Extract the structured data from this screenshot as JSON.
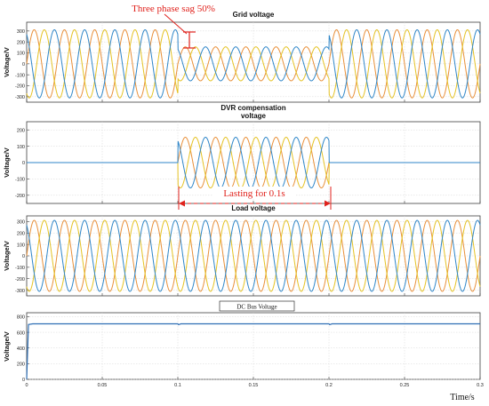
{
  "colors": {
    "phase_a": "#e8903a",
    "phase_b": "#e5c224",
    "phase_c": "#2f86c8",
    "annotation_red": "#e0221c",
    "dc_bus": "#2f6fb5",
    "grid_line": "#d6d6d6",
    "axis": "#404040"
  },
  "annotations": {
    "sag_label": "Three phase sag 50%",
    "lasting_label": "Lasting for 0.1s"
  },
  "x_axis": {
    "label": "Time/s",
    "ticks": [
      "0",
      "0.05",
      "0.1",
      "0.15",
      "0.2",
      "0.25",
      "0.3"
    ]
  },
  "chart_data": [
    {
      "type": "line",
      "title": "Grid voltage",
      "ylabel": "Voltage/V",
      "xlim": [
        0,
        0.3
      ],
      "ylim": [
        -350,
        380
      ],
      "yticks": [
        -300,
        -200,
        -100,
        0,
        100,
        200,
        300
      ],
      "grid": true,
      "signal": "three_phase_sine",
      "frequency_hz": 50,
      "segments": [
        {
          "t_start": 0,
          "t_end": 0.1,
          "amplitude": 311
        },
        {
          "t_start": 0.1,
          "t_end": 0.2,
          "amplitude": 155
        },
        {
          "t_start": 0.2,
          "t_end": 0.3,
          "amplitude": 311
        }
      ],
      "series": [
        {
          "phase_deg": 0
        },
        {
          "phase_deg": -120
        },
        {
          "phase_deg": 120
        }
      ]
    },
    {
      "type": "line",
      "title": "DVR compensation\nvoltage",
      "ylabel": "Voltage/V",
      "xlim": [
        0,
        0.3
      ],
      "ylim": [
        -250,
        250
      ],
      "yticks": [
        -200,
        -100,
        0,
        100,
        200
      ],
      "grid": true,
      "signal": "three_phase_sine",
      "frequency_hz": 50,
      "segments": [
        {
          "t_start": 0,
          "t_end": 0.1,
          "amplitude": 0
        },
        {
          "t_start": 0.1,
          "t_end": 0.2,
          "amplitude": 155
        },
        {
          "t_start": 0.2,
          "t_end": 0.3,
          "amplitude": 0
        }
      ],
      "series": [
        {
          "phase_deg": 0
        },
        {
          "phase_deg": -120
        },
        {
          "phase_deg": 120
        }
      ]
    },
    {
      "type": "line",
      "title": "Load voltage",
      "ylabel": "Voltage/V",
      "xlim": [
        0,
        0.3
      ],
      "ylim": [
        -350,
        350
      ],
      "yticks": [
        -300,
        -200,
        -100,
        0,
        100,
        200,
        300
      ],
      "grid": true,
      "signal": "three_phase_sine",
      "frequency_hz": 50,
      "segments": [
        {
          "t_start": 0,
          "t_end": 0.3,
          "amplitude": 311
        }
      ],
      "series": [
        {
          "phase_deg": 0
        },
        {
          "phase_deg": -120
        },
        {
          "phase_deg": 120
        }
      ]
    },
    {
      "type": "line",
      "title": "DC Bus Voltage",
      "ylabel": "Voltage/V",
      "xlim": [
        0,
        0.3
      ],
      "ylim": [
        0,
        850
      ],
      "yticks": [
        0,
        200,
        400,
        600,
        800
      ],
      "grid": true,
      "series": [
        {
          "x": [
            0,
            0.0012,
            0.004,
            0.1,
            0.1005,
            0.102,
            0.2,
            0.2005,
            0.202,
            0.3
          ],
          "y": [
            0,
            700,
            708,
            708,
            698,
            708,
            708,
            698,
            708,
            708
          ]
        }
      ]
    }
  ]
}
